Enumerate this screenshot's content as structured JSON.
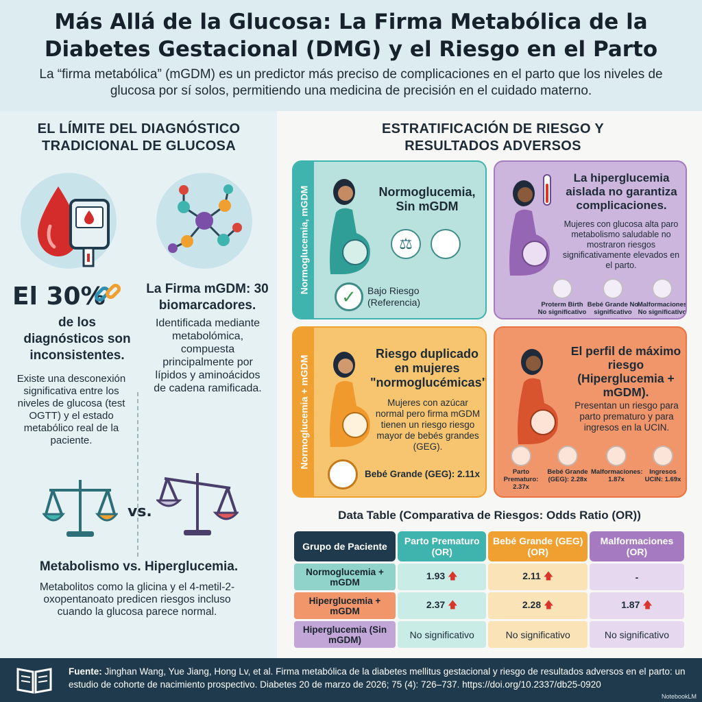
{
  "header": {
    "title": "Más Allá de la Glucosa: La Firma Metabólica de la Diabetes Gestacional (DMG) y el Riesgo en el Parto",
    "subtitle": "La “firma metabólica” (mGDM) es un predictor más preciso de complicaciones en el parto que los niveles de glucosa por sí solos, permitiendo una medicina de precisión en el cuidado materno."
  },
  "left": {
    "heading": "EL LÍMITE DEL DIAGNÓSTICO TRADICIONAL DE GLUCOSA",
    "stat_big": "El 30%",
    "stat_rest": "de los diagnósticos son inconsistentes.",
    "stat_body": "Existe una desconexión significativa entre los niveles de glucosa (test OGTT) y el estado metabólico real de la paciente.",
    "firma_title": "La Firma mGDM: 30 biomarcadores.",
    "firma_body": "Identificada mediante metabolómica, compuesta principalmente por lípidos y aminoácidos de cadena ramificada.",
    "vs": "vs.",
    "meta_title": "Metabolismo vs. Hiperglucemia.",
    "meta_body": "Metabolitos como la glicina y el 4-metil-2-oxopentanoato predicen riesgos incluso cuando la glucosa parece normal."
  },
  "right": {
    "heading": "ESTRATIFICACIÓN DE RIESGO Y RESULTADOS ADVERSOS",
    "card1": {
      "side": "Normoglucemia, mGDM",
      "title": "Normoglucemia, Sin mGDM",
      "risk": "Bajo Riesgo (Referencia)"
    },
    "card2": {
      "title": "La hiperglucemia aislada no garantiza complicaciones.",
      "body": "Mujeres con glucosa alta paro metabolismo saludable no mostraron riesgos significativamente elevados en el parto.",
      "items": [
        "Proterm Birth No significativo",
        "Bebé Grande No significativo",
        "Malformaciones No significativo"
      ]
    },
    "card3": {
      "side": "Normoglucemia + mGDM",
      "title": "Riesgo duplicado en mujeres \"normoglucémicas\".",
      "body": "Mujeres con azúcar normal pero firma mGDM tienen un riesgo riesgo mayor de bebés grandes (GEG).",
      "risk": "Bebé Grande (GEG): 2.11x"
    },
    "card4": {
      "title": "El perfil de máximo riesgo (Hiperglucemia + mGDM).",
      "body": "Presentan un riesgo para parto prematuro y para ingresos en la UCIN.",
      "items": [
        "Parto Prematuro: 2.37x",
        "Bebé Grande (GEG): 2.28x",
        "Malformaciones: 1.87x",
        "Ingresos UCIN: 1.69x"
      ]
    }
  },
  "table": {
    "title": "Data Table (Comparativa de Riesgos: Odds Ratio (OR))",
    "headers": [
      "Grupo de Paciente",
      "Parto Prematuro (OR)",
      "Bebé Grande (GEG) (OR)",
      "Malformaciones (OR)"
    ],
    "rows": [
      {
        "group": "Normoglucemia + mGDM",
        "values": [
          "1.93",
          "2.11",
          "-"
        ]
      },
      {
        "group": "Hiperglucemia + mGDM",
        "values": [
          "2.37",
          "2.28",
          "1.87"
        ]
      },
      {
        "group": "Hiperglucemia (Sin mGDM)",
        "values": [
          "No significativo",
          "No significativo",
          "No significativo"
        ]
      }
    ],
    "up_symbol": "🡅"
  },
  "footer": {
    "label": "Fuente:",
    "text": " Jinghan Wang, Yue Jiang, Hong Lv, et al. Firma metabólica de la diabetes mellitus gestacional y riesgo de resultados adversos en el parto: un estudio de cohorte de nacimiento prospectivo. Diabetes 20 de marzo de 2026; 75 (4): 726–737. ",
    "link": "https://doi.org/10.2337/db25-0920",
    "brand": "NotebookLM"
  },
  "colors": {
    "teal": "#3fb3ad",
    "purple": "#a57ac0",
    "orange": "#f0a030",
    "red": "#e8743f",
    "navy": "#1e3a4c"
  }
}
